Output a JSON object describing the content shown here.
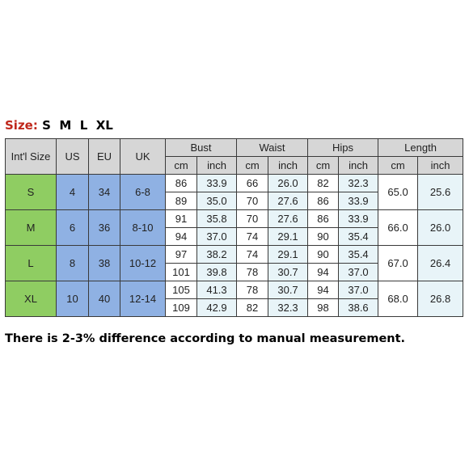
{
  "size_line": {
    "label": "Size:",
    "sizes": "S  M  L  XL"
  },
  "header": {
    "intl_size": "Int'l Size",
    "us": "US",
    "eu": "EU",
    "uk": "UK",
    "bust": "Bust",
    "waist": "Waist",
    "hips": "Hips",
    "length": "Length",
    "cm": "cm",
    "inch": "inch"
  },
  "rows": [
    {
      "size": "S",
      "us": "4",
      "eu": "34",
      "uk": "6-8",
      "lines": [
        {
          "bust_cm": "86",
          "bust_in": "33.9",
          "waist_cm": "66",
          "waist_in": "26.0",
          "hips_cm": "82",
          "hips_in": "32.3"
        },
        {
          "bust_cm": "89",
          "bust_in": "35.0",
          "waist_cm": "70",
          "waist_in": "27.6",
          "hips_cm": "86",
          "hips_in": "33.9"
        }
      ],
      "length_cm": "65.0",
      "length_in": "25.6"
    },
    {
      "size": "M",
      "us": "6",
      "eu": "36",
      "uk": "8-10",
      "lines": [
        {
          "bust_cm": "91",
          "bust_in": "35.8",
          "waist_cm": "70",
          "waist_in": "27.6",
          "hips_cm": "86",
          "hips_in": "33.9"
        },
        {
          "bust_cm": "94",
          "bust_in": "37.0",
          "waist_cm": "74",
          "waist_in": "29.1",
          "hips_cm": "90",
          "hips_in": "35.4"
        }
      ],
      "length_cm": "66.0",
      "length_in": "26.0"
    },
    {
      "size": "L",
      "us": "8",
      "eu": "38",
      "uk": "10-12",
      "lines": [
        {
          "bust_cm": "97",
          "bust_in": "38.2",
          "waist_cm": "74",
          "waist_in": "29.1",
          "hips_cm": "90",
          "hips_in": "35.4"
        },
        {
          "bust_cm": "101",
          "bust_in": "39.8",
          "waist_cm": "78",
          "waist_in": "30.7",
          "hips_cm": "94",
          "hips_in": "37.0"
        }
      ],
      "length_cm": "67.0",
      "length_in": "26.4"
    },
    {
      "size": "XL",
      "us": "10",
      "eu": "40",
      "uk": "12-14",
      "lines": [
        {
          "bust_cm": "105",
          "bust_in": "41.3",
          "waist_cm": "78",
          "waist_in": "30.7",
          "hips_cm": "94",
          "hips_in": "37.0"
        },
        {
          "bust_cm": "109",
          "bust_in": "42.9",
          "waist_cm": "82",
          "waist_in": "32.3",
          "hips_cm": "98",
          "hips_in": "38.6"
        }
      ],
      "length_cm": "68.0",
      "length_in": "26.8"
    }
  ],
  "note": "There is 2-3% difference according to manual measurement.",
  "colors": {
    "size_label": "#c0281c",
    "header_bg": "#d6d6d6",
    "size_col_bg": "#8fcd62",
    "us_eu_uk_bg": "#8fb1e3",
    "inch_bg": "#e8f4f8",
    "border": "#3a3a3a"
  }
}
